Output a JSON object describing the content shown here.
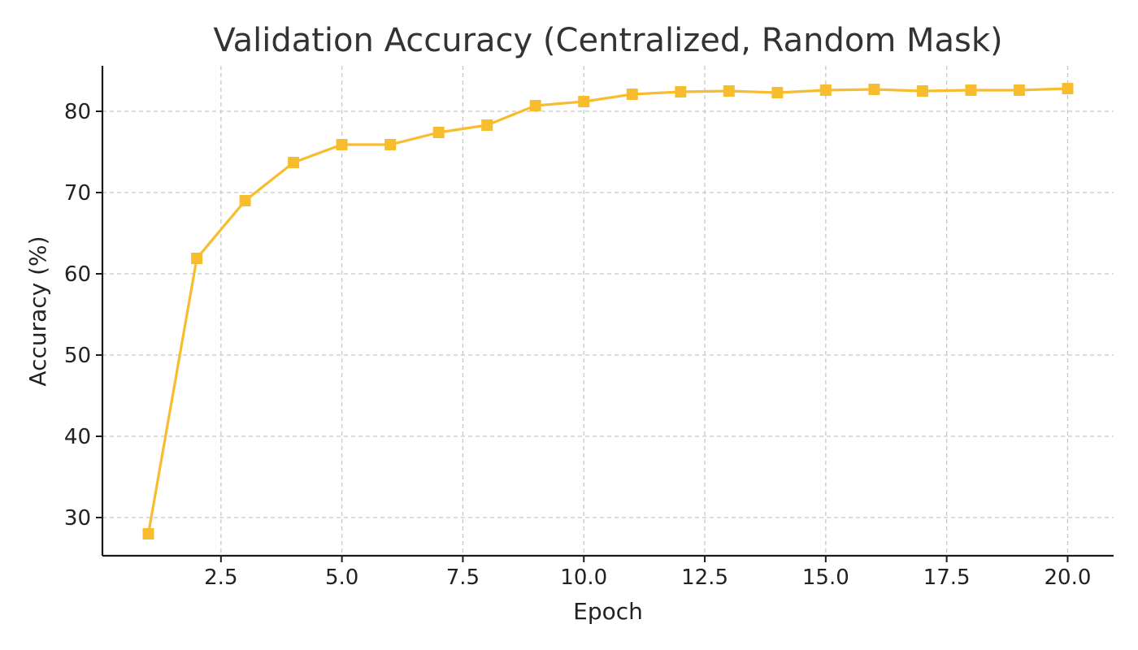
{
  "chart_data": {
    "type": "line",
    "title": "Validation Accuracy (Centralized, Random Mask)",
    "xlabel": "Epoch",
    "ylabel": "Accuracy (%)",
    "xlim": [
      0.05,
      20.95
    ],
    "ylim": [
      25.3,
      85.6
    ],
    "xticks": [
      2.5,
      5.0,
      7.5,
      10.0,
      12.5,
      15.0,
      17.5,
      20.0
    ],
    "xtick_labels": [
      "2.5",
      "5.0",
      "7.5",
      "10.0",
      "12.5",
      "15.0",
      "17.5",
      "20.0"
    ],
    "yticks": [
      30,
      40,
      50,
      60,
      70,
      80
    ],
    "ytick_labels": [
      "30",
      "40",
      "50",
      "60",
      "70",
      "80"
    ],
    "grid": true,
    "marker": "square",
    "series": [
      {
        "color": "#f7bd2e",
        "x": [
          1,
          2,
          3,
          4,
          5,
          6,
          7,
          8,
          9,
          10,
          11,
          12,
          13,
          14,
          15,
          16,
          17,
          18,
          19,
          20
        ],
        "y": [
          28.0,
          61.9,
          69.0,
          73.7,
          75.9,
          75.9,
          77.4,
          78.3,
          80.7,
          81.2,
          82.1,
          82.4,
          82.5,
          82.3,
          82.6,
          82.7,
          82.5,
          82.6,
          82.6,
          82.8
        ]
      }
    ]
  }
}
